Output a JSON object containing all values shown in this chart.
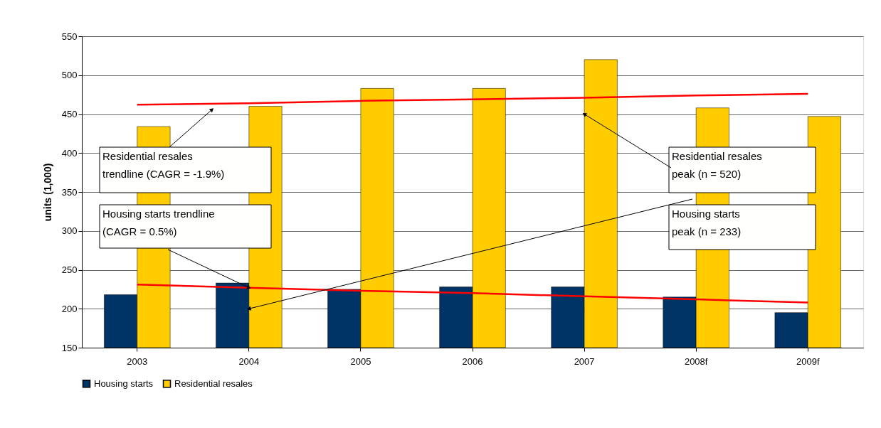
{
  "chart_data": {
    "type": "bar",
    "ylabel": "units (1,000)",
    "categories": [
      "2003",
      "2004",
      "2005",
      "2006",
      "2007",
      "2008f",
      "2009f"
    ],
    "series": [
      {
        "name": "Housing starts",
        "color": "#003366",
        "values": [
          218,
          233,
          225,
          228,
          228,
          215,
          195
        ]
      },
      {
        "name": "Residential resales",
        "color": "#ffcc00",
        "values": [
          434,
          460,
          483,
          483,
          520,
          458,
          447
        ]
      },
      {
        "type": "line",
        "color": "#ff0000",
        "values": [
          462,
          464,
          467,
          469,
          471,
          474,
          476
        ]
      },
      {
        "type": "line",
        "color": "#ff0000",
        "values": [
          231,
          227,
          223,
          220,
          216,
          212,
          208
        ]
      }
    ],
    "ylim": [
      150,
      550
    ],
    "yticks": [
      150,
      200,
      250,
      300,
      350,
      400,
      450,
      500,
      550
    ],
    "grid": "y",
    "legend": "bottom",
    "annotations": [
      "Residential resales\ntrendline (CAGR = -1.9%)",
      {
        "text": "Housing starts trendline\n(CAGR = 0.5%)",
        "x": "2004",
        "y": 227
      },
      {
        "text": "Residential resales\npeak (n = 520)",
        "x": "2007",
        "y": 450
      },
      {
        "text": "Housing starts\npeak (n = 233)",
        "x": "2004",
        "y": 200
      }
    ]
  }
}
